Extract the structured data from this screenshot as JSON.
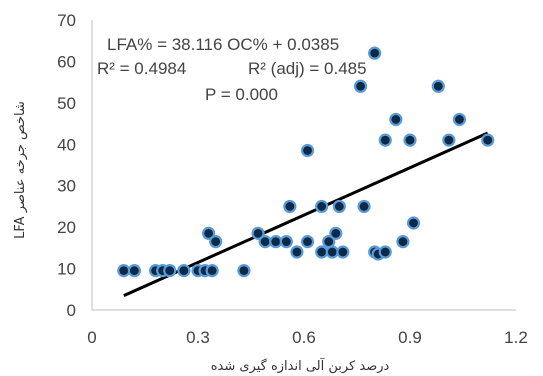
{
  "chart_data": {
    "type": "scatter",
    "xlabel": "درصد کربن آلی اندازه گیری شده",
    "ylabel": "LFA شاخص جرخه عناصر",
    "xlim": [
      0,
      1.2
    ],
    "ylim": [
      0,
      70
    ],
    "xticks": [
      "0",
      "0.3",
      "0.6",
      "0.9",
      "1.2"
    ],
    "yticks": [
      "0",
      "10",
      "20",
      "30",
      "40",
      "50",
      "60",
      "70"
    ],
    "grid": false,
    "annotations": {
      "equation": "LFA% = 38.116 OC% + 0.0385",
      "r2": "R² = 0.4984",
      "r2_adj": "R² (adj) = 0.485",
      "p": "P = 0.000"
    },
    "marker_color": "#0b2a4a",
    "marker_edge_color": "#5b9bd5",
    "trendline": {
      "slope": 38.116,
      "intercept": 0.0385,
      "x_range": [
        0.09,
        1.12
      ],
      "color": "#000000"
    },
    "points": [
      [
        0.09,
        9.5
      ],
      [
        0.12,
        9.5
      ],
      [
        0.18,
        9.5
      ],
      [
        0.2,
        9.5
      ],
      [
        0.22,
        9.5
      ],
      [
        0.26,
        9.5
      ],
      [
        0.3,
        9.5
      ],
      [
        0.32,
        9.5
      ],
      [
        0.34,
        9.5
      ],
      [
        0.43,
        9.5
      ],
      [
        0.33,
        18.5
      ],
      [
        0.35,
        16.5
      ],
      [
        0.47,
        18.5
      ],
      [
        0.49,
        16.5
      ],
      [
        0.52,
        16.5
      ],
      [
        0.55,
        16.5
      ],
      [
        0.56,
        25
      ],
      [
        0.58,
        14
      ],
      [
        0.61,
        16.5
      ],
      [
        0.61,
        38.5
      ],
      [
        0.65,
        25
      ],
      [
        0.65,
        14
      ],
      [
        0.67,
        16.5
      ],
      [
        0.68,
        14
      ],
      [
        0.69,
        18.5
      ],
      [
        0.7,
        25
      ],
      [
        0.71,
        14
      ],
      [
        0.76,
        54
      ],
      [
        0.77,
        25
      ],
      [
        0.8,
        62
      ],
      [
        0.8,
        14
      ],
      [
        0.81,
        13.5
      ],
      [
        0.83,
        41
      ],
      [
        0.83,
        14
      ],
      [
        0.86,
        46
      ],
      [
        0.88,
        16.5
      ],
      [
        0.9,
        41
      ],
      [
        0.91,
        21
      ],
      [
        0.98,
        54
      ],
      [
        1.01,
        41
      ],
      [
        1.04,
        46
      ],
      [
        1.12,
        41
      ]
    ]
  }
}
